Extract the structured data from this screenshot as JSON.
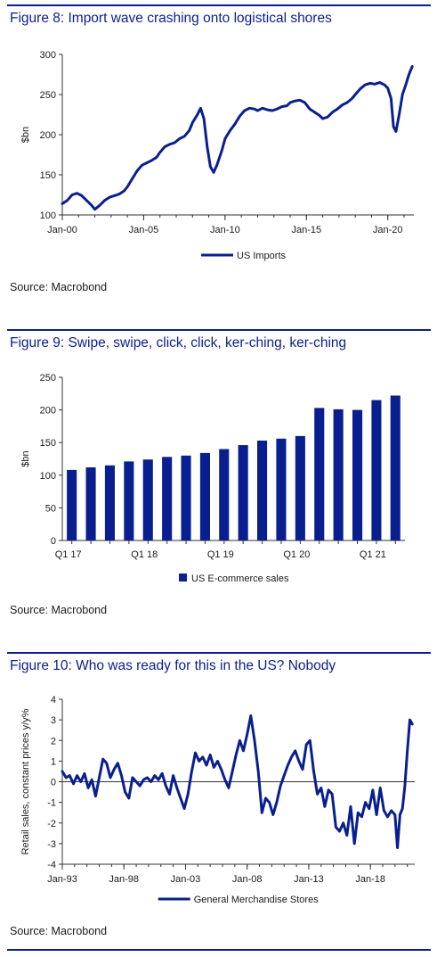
{
  "accent": "#0a1f8f",
  "figures": [
    {
      "title": "Figure 8: Import wave crashing onto logistical shores",
      "source": "Source: Macrobond"
    },
    {
      "title": "Figure 9: Swipe, swipe, click, click, ker-ching, ker-ching",
      "source": "Source: Macrobond"
    },
    {
      "title": "Figure 10: Who was ready for this in the US? Nobody",
      "source": "Source: Macrobond"
    }
  ],
  "chart_data": [
    {
      "type": "line",
      "ylabel": "$bn",
      "ylim": [
        100,
        300
      ],
      "yticks": [
        100,
        150,
        200,
        250,
        300
      ],
      "xlim": [
        2000,
        2021.6
      ],
      "xticks": [
        {
          "x": 2000,
          "label": "Jan-00"
        },
        {
          "x": 2005,
          "label": "Jan-05"
        },
        {
          "x": 2010,
          "label": "Jan-10"
        },
        {
          "x": 2015,
          "label": "Jan-15"
        },
        {
          "x": 2020,
          "label": "Jan-20"
        }
      ],
      "grid": false,
      "legend": "bottom",
      "color": "#0a1f8f",
      "series": [
        {
          "name": "US Imports",
          "x": [
            2000.0,
            2000.3,
            2000.6,
            2000.9,
            2001.2,
            2001.5,
            2001.8,
            2002.0,
            2002.3,
            2002.6,
            2002.9,
            2003.2,
            2003.5,
            2003.8,
            2004.0,
            2004.3,
            2004.6,
            2004.9,
            2005.2,
            2005.5,
            2005.8,
            2006.0,
            2006.3,
            2006.6,
            2006.9,
            2007.2,
            2007.5,
            2007.8,
            2008.0,
            2008.3,
            2008.5,
            2008.7,
            2008.9,
            2009.1,
            2009.3,
            2009.5,
            2009.8,
            2010.0,
            2010.3,
            2010.6,
            2010.9,
            2011.2,
            2011.5,
            2011.8,
            2012.0,
            2012.3,
            2012.6,
            2012.9,
            2013.2,
            2013.5,
            2013.8,
            2014.0,
            2014.3,
            2014.6,
            2014.9,
            2015.2,
            2015.5,
            2015.8,
            2016.0,
            2016.3,
            2016.6,
            2016.9,
            2017.2,
            2017.5,
            2017.8,
            2018.0,
            2018.3,
            2018.6,
            2018.9,
            2019.2,
            2019.5,
            2019.8,
            2020.0,
            2020.2,
            2020.35,
            2020.5,
            2020.7,
            2020.9,
            2021.1,
            2021.3,
            2021.5
          ],
          "y": [
            114,
            118,
            125,
            127,
            124,
            118,
            112,
            107,
            112,
            118,
            122,
            124,
            126,
            130,
            135,
            145,
            155,
            162,
            165,
            168,
            172,
            178,
            185,
            188,
            190,
            195,
            198,
            205,
            215,
            225,
            233,
            220,
            185,
            160,
            153,
            162,
            180,
            195,
            205,
            213,
            223,
            230,
            233,
            232,
            230,
            233,
            231,
            230,
            232,
            235,
            236,
            240,
            242,
            243,
            240,
            232,
            228,
            224,
            220,
            222,
            228,
            232,
            237,
            240,
            245,
            250,
            257,
            262,
            264,
            263,
            265,
            262,
            258,
            245,
            210,
            204,
            225,
            250,
            262,
            275,
            285
          ]
        }
      ]
    },
    {
      "type": "bar",
      "ylabel": "$bn",
      "ylim": [
        0,
        250
      ],
      "yticks": [
        0,
        50,
        100,
        150,
        200,
        250
      ],
      "categories": [
        "Q1 17",
        "Q2 17",
        "Q3 17",
        "Q4 17",
        "Q1 18",
        "Q2 18",
        "Q3 18",
        "Q4 18",
        "Q1 19",
        "Q2 19",
        "Q3 19",
        "Q4 19",
        "Q1 20",
        "Q2 20",
        "Q3 20",
        "Q4 20",
        "Q1 21",
        "Q2 21"
      ],
      "xtick_labels": [
        "Q1 17",
        "",
        "",
        "",
        "Q1 18",
        "",
        "",
        "",
        "Q1 19",
        "",
        "",
        "",
        "Q1 20",
        "",
        "",
        "",
        "Q1 21",
        ""
      ],
      "grid": false,
      "legend": "bottom",
      "color": "#0a1f8f",
      "series": [
        {
          "name": "US E-commerce sales",
          "values": [
            108,
            112,
            115,
            121,
            124,
            128,
            130,
            134,
            140,
            146,
            153,
            156,
            160,
            203,
            201,
            200,
            215,
            222
          ]
        }
      ]
    },
    {
      "type": "line",
      "ylabel": "Retail sales, constant prices y/y%",
      "ylim": [
        -4,
        4
      ],
      "yticks": [
        -4,
        -3,
        -2,
        -1,
        0,
        1,
        2,
        3,
        4
      ],
      "xlim": [
        1993,
        2021.6
      ],
      "xticks": [
        {
          "x": 1993,
          "label": "Jan-93"
        },
        {
          "x": 1998,
          "label": "Jan-98"
        },
        {
          "x": 2003,
          "label": "Jan-03"
        },
        {
          "x": 2008,
          "label": "Jan-08"
        },
        {
          "x": 2013,
          "label": "Jan-13"
        },
        {
          "x": 2018,
          "label": "Jan-18"
        }
      ],
      "zero_line": true,
      "grid": false,
      "legend": "bottom",
      "color": "#0a1f8f",
      "series": [
        {
          "name": "General Merchandise Stores",
          "x": [
            1993.0,
            1993.3,
            1993.6,
            1993.9,
            1994.2,
            1994.5,
            1994.8,
            1995.1,
            1995.4,
            1995.7,
            1996.0,
            1996.3,
            1996.6,
            1996.9,
            1997.2,
            1997.5,
            1997.8,
            1998.1,
            1998.4,
            1998.7,
            1999.0,
            1999.3,
            1999.6,
            1999.9,
            2000.2,
            2000.5,
            2000.8,
            2001.1,
            2001.4,
            2001.7,
            2002.0,
            2002.3,
            2002.6,
            2002.9,
            2003.2,
            2003.5,
            2003.8,
            2004.1,
            2004.4,
            2004.7,
            2005.0,
            2005.3,
            2005.6,
            2005.9,
            2006.2,
            2006.5,
            2006.8,
            2007.1,
            2007.4,
            2007.7,
            2008.0,
            2008.3,
            2008.6,
            2008.9,
            2009.2,
            2009.5,
            2009.8,
            2010.1,
            2010.4,
            2010.7,
            2011.0,
            2011.3,
            2011.6,
            2011.9,
            2012.2,
            2012.5,
            2012.8,
            2013.1,
            2013.4,
            2013.7,
            2014.0,
            2014.3,
            2014.6,
            2014.9,
            2015.2,
            2015.5,
            2015.8,
            2016.1,
            2016.4,
            2016.7,
            2017.0,
            2017.3,
            2017.6,
            2017.9,
            2018.2,
            2018.5,
            2018.8,
            2019.1,
            2019.4,
            2019.7,
            2020.0,
            2020.2,
            2020.4,
            2020.6,
            2020.8,
            2021.0,
            2021.2,
            2021.4
          ],
          "y": [
            0.5,
            0.2,
            0.3,
            -0.1,
            0.3,
            0.0,
            0.4,
            -0.3,
            0.1,
            -0.7,
            0.2,
            1.1,
            0.9,
            0.2,
            0.6,
            0.9,
            0.3,
            -0.5,
            -0.8,
            0.2,
            0.0,
            -0.2,
            0.1,
            0.2,
            0.0,
            0.3,
            0.1,
            0.4,
            -0.2,
            -0.6,
            0.3,
            -0.3,
            -0.8,
            -1.3,
            -0.6,
            0.5,
            1.4,
            1.0,
            1.2,
            0.8,
            1.3,
            0.7,
            1.0,
            0.6,
            0.1,
            -0.3,
            0.5,
            1.3,
            2.0,
            1.5,
            2.3,
            3.2,
            2.0,
            0.5,
            -1.5,
            -0.8,
            -1.0,
            -1.6,
            -1.0,
            -0.2,
            0.3,
            0.8,
            1.2,
            1.5,
            1.0,
            0.6,
            1.8,
            2.0,
            0.5,
            -0.6,
            -0.3,
            -1.2,
            -0.4,
            -0.6,
            -2.2,
            -2.4,
            -2.0,
            -2.6,
            -1.2,
            -3.0,
            -1.5,
            -1.7,
            -1.0,
            -1.3,
            -0.4,
            -1.6,
            -0.3,
            -1.4,
            -1.7,
            -1.4,
            -1.6,
            -3.2,
            -1.6,
            -1.3,
            -0.2,
            1.5,
            3.0,
            2.8
          ]
        }
      ]
    }
  ]
}
